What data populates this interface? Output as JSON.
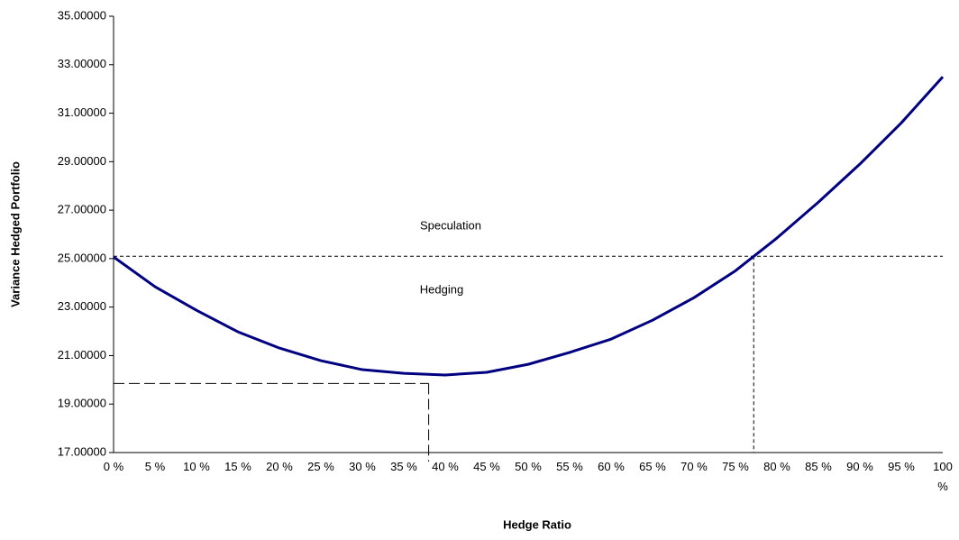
{
  "chart_data": {
    "type": "line",
    "x_label": "Hedge Ratio",
    "y_label": "Variance Hedged Portfolio",
    "categories": [
      "0 %",
      "5 %",
      "10 %",
      "15 %",
      "20 %",
      "25 %",
      "30 %",
      "35 %",
      "40 %",
      "45 %",
      "50 %",
      "55 %",
      "60 %",
      "65 %",
      "70 %",
      "75 %",
      "80 %",
      "85 %",
      "90 %",
      "95 %",
      "100 %"
    ],
    "series": [
      {
        "color": "#000080",
        "values": [
          25.07,
          23.84,
          22.87,
          21.98,
          21.31,
          20.79,
          20.42,
          20.27,
          20.2,
          20.31,
          20.64,
          21.13,
          21.68,
          22.46,
          23.39,
          24.5,
          25.85,
          27.33,
          28.9,
          30.6,
          32.5
        ]
      }
    ],
    "xlim": [
      0,
      100
    ],
    "ylim": [
      17,
      35
    ],
    "yticks": [
      {
        "value": 17,
        "label": "17.00000"
      },
      {
        "value": 19,
        "label": "19.00000"
      },
      {
        "value": 21,
        "label": "21.00000"
      },
      {
        "value": 23,
        "label": "23.00000"
      },
      {
        "value": 25,
        "label": "25.00000"
      },
      {
        "value": 27,
        "label": "27.00000"
      },
      {
        "value": 29,
        "label": "29.00000"
      },
      {
        "value": 31,
        "label": "31.00000"
      },
      {
        "value": 33,
        "label": "33.00000"
      },
      {
        "value": 35,
        "label": "35.00000"
      }
    ],
    "reference_lines": [
      {
        "x": 77.2,
        "y": 25.1,
        "dash": "4 3",
        "horizontal_full_width": true
      },
      {
        "x": 38,
        "y": 19.85,
        "dash": "12 5",
        "horizontal_full_width": false
      }
    ],
    "annotations": [
      {
        "text": "Speculation"
      },
      {
        "text": "Hedging"
      }
    ]
  }
}
